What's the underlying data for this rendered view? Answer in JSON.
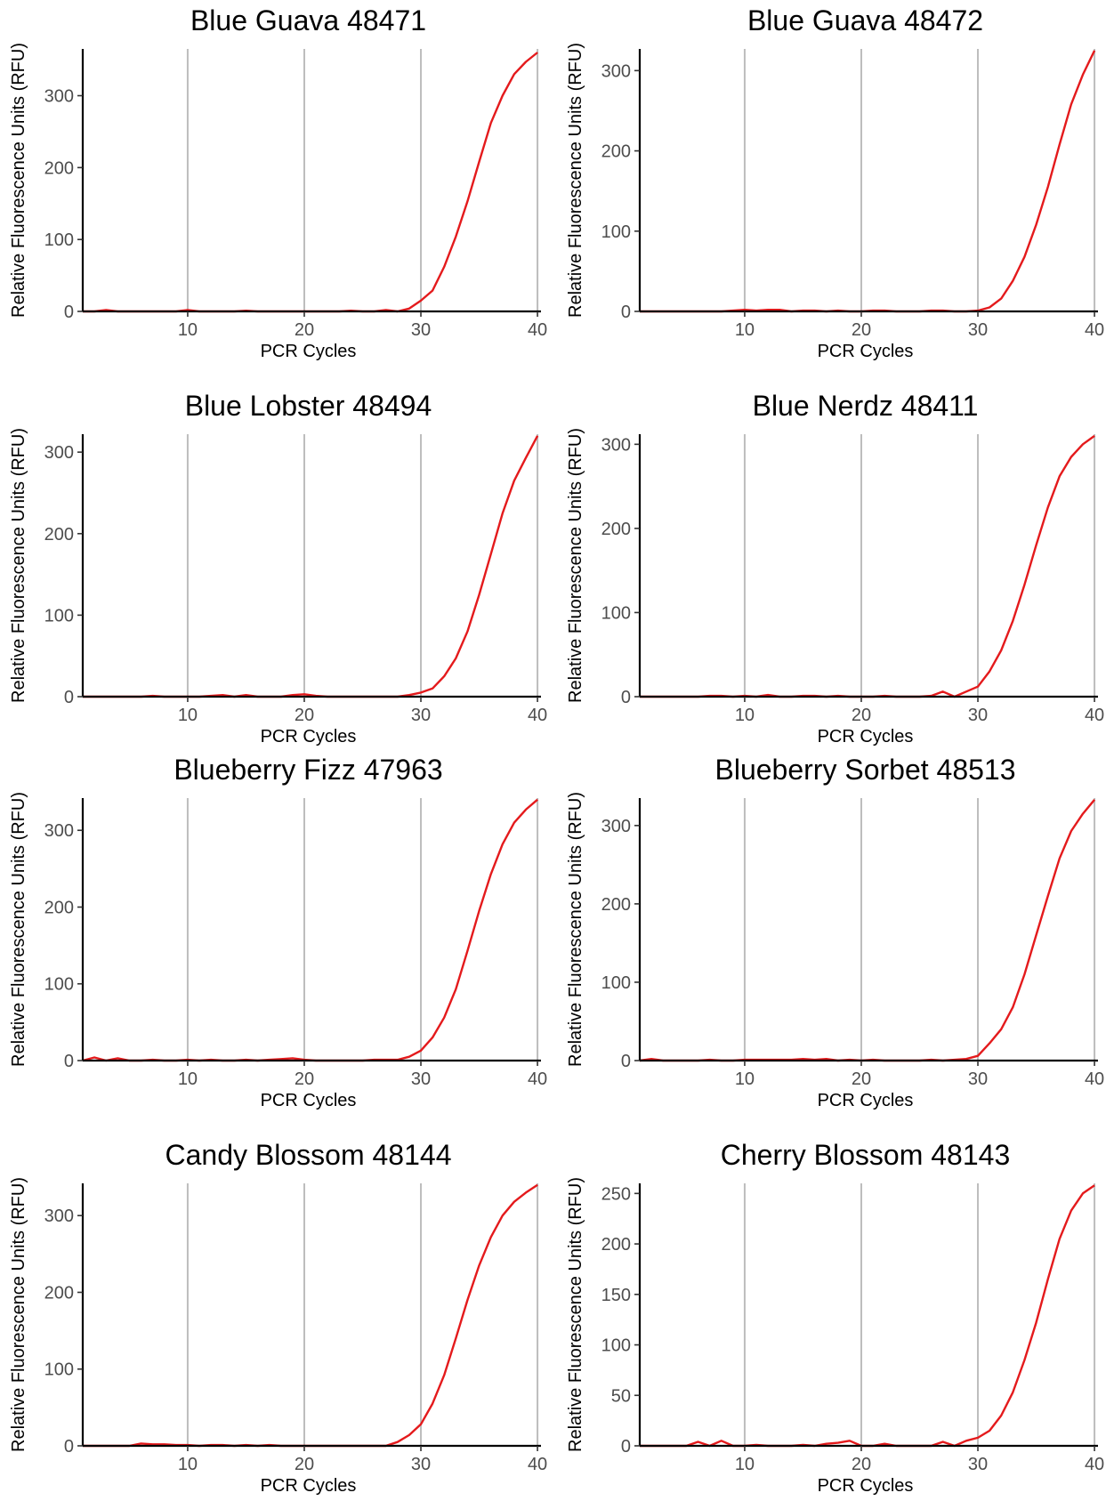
{
  "colors": {
    "series": "#e41a1c",
    "grid": "#bdbdbd",
    "axis": "#000000",
    "tick_text": "#4d4d4d"
  },
  "chart_data": [
    {
      "type": "line",
      "title": "Blue Guava 48471",
      "xlabel": "PCR Cycles",
      "ylabel": "Relative Fluorescence Units (RFU)",
      "xlim": [
        1,
        40.3
      ],
      "ylim": [
        0,
        365
      ],
      "xticks": [
        10,
        20,
        30,
        40
      ],
      "yticks": [
        0,
        100,
        200,
        300
      ],
      "grid": "vertical major",
      "x": [
        1,
        2,
        3,
        4,
        5,
        6,
        7,
        8,
        9,
        10,
        11,
        12,
        13,
        14,
        15,
        16,
        17,
        18,
        19,
        20,
        21,
        22,
        23,
        24,
        25,
        26,
        27,
        28,
        29,
        30,
        31,
        32,
        33,
        34,
        35,
        36,
        37,
        38,
        39,
        40
      ],
      "y": [
        0,
        0,
        2,
        0,
        0,
        0,
        0,
        0,
        0,
        2,
        0,
        0,
        0,
        0,
        1,
        0,
        0,
        0,
        0,
        0,
        0,
        0,
        0,
        1,
        0,
        0,
        2,
        0,
        4,
        15,
        29,
        62,
        104,
        153,
        208,
        262,
        300,
        330,
        347,
        360
      ]
    },
    {
      "type": "line",
      "title": "Blue Guava 48472",
      "xlabel": "PCR Cycles",
      "ylabel": "Relative Fluorescence Units (RFU)",
      "xlim": [
        1,
        40.3
      ],
      "ylim": [
        0,
        327
      ],
      "xticks": [
        10,
        20,
        30,
        40
      ],
      "yticks": [
        0,
        100,
        200,
        300
      ],
      "grid": "vertical major",
      "x": [
        1,
        2,
        3,
        4,
        5,
        6,
        7,
        8,
        9,
        10,
        11,
        12,
        13,
        14,
        15,
        16,
        17,
        18,
        19,
        20,
        21,
        22,
        23,
        24,
        25,
        26,
        27,
        28,
        29,
        30,
        31,
        32,
        33,
        34,
        35,
        36,
        37,
        38,
        39,
        40
      ],
      "y": [
        0,
        0,
        0,
        0,
        0,
        0,
        0,
        0,
        1,
        2,
        1,
        2,
        2,
        0,
        1,
        1,
        0,
        1,
        0,
        0,
        1,
        1,
        0,
        0,
        0,
        1,
        1,
        0,
        0,
        1,
        5,
        16,
        38,
        68,
        108,
        155,
        208,
        258,
        295,
        325
      ]
    },
    {
      "type": "line",
      "title": "Blue Lobster 48494",
      "xlabel": "PCR Cycles",
      "ylabel": "Relative Fluorescence Units (RFU)",
      "xlim": [
        1,
        40.3
      ],
      "ylim": [
        0,
        322
      ],
      "xticks": [
        10,
        20,
        30,
        40
      ],
      "yticks": [
        0,
        100,
        200,
        300
      ],
      "grid": "vertical major",
      "x": [
        1,
        2,
        3,
        4,
        5,
        6,
        7,
        8,
        9,
        10,
        11,
        12,
        13,
        14,
        15,
        16,
        17,
        18,
        19,
        20,
        21,
        22,
        23,
        24,
        25,
        26,
        27,
        28,
        29,
        30,
        31,
        32,
        33,
        34,
        35,
        36,
        37,
        38,
        39,
        40
      ],
      "y": [
        0,
        0,
        0,
        0,
        0,
        0,
        1,
        0,
        0,
        0,
        0,
        1,
        2,
        0,
        2,
        0,
        0,
        0,
        2,
        3,
        1,
        0,
        0,
        0,
        0,
        0,
        0,
        0,
        2,
        5,
        10,
        25,
        47,
        80,
        125,
        175,
        225,
        265,
        293,
        320
      ]
    },
    {
      "type": "line",
      "title": "Blue Nerdz 48411",
      "xlabel": "PCR Cycles",
      "ylabel": "Relative Fluorescence Units (RFU)",
      "xlim": [
        1,
        40.3
      ],
      "ylim": [
        0,
        312
      ],
      "xticks": [
        10,
        20,
        30,
        40
      ],
      "yticks": [
        0,
        100,
        200,
        300
      ],
      "grid": "vertical major",
      "x": [
        1,
        2,
        3,
        4,
        5,
        6,
        7,
        8,
        9,
        10,
        11,
        12,
        13,
        14,
        15,
        16,
        17,
        18,
        19,
        20,
        21,
        22,
        23,
        24,
        25,
        26,
        27,
        28,
        29,
        30,
        31,
        32,
        33,
        34,
        35,
        36,
        37,
        38,
        39,
        40
      ],
      "y": [
        0,
        0,
        0,
        0,
        0,
        0,
        1,
        1,
        0,
        1,
        0,
        2,
        0,
        0,
        1,
        1,
        0,
        1,
        0,
        0,
        0,
        1,
        0,
        0,
        0,
        1,
        6,
        0,
        6,
        12,
        30,
        55,
        90,
        133,
        180,
        225,
        262,
        285,
        300,
        310
      ]
    },
    {
      "type": "line",
      "title": "Blueberry Fizz 47963",
      "xlabel": "PCR Cycles",
      "ylabel": "Relative Fluorescence Units (RFU)",
      "xlim": [
        1,
        40.3
      ],
      "ylim": [
        0,
        342
      ],
      "xticks": [
        10,
        20,
        30,
        40
      ],
      "yticks": [
        0,
        100,
        200,
        300
      ],
      "grid": "vertical major",
      "x": [
        1,
        2,
        3,
        4,
        5,
        6,
        7,
        8,
        9,
        10,
        11,
        12,
        13,
        14,
        15,
        16,
        17,
        18,
        19,
        20,
        21,
        22,
        23,
        24,
        25,
        26,
        27,
        28,
        29,
        30,
        31,
        32,
        33,
        34,
        35,
        36,
        37,
        38,
        39,
        40
      ],
      "y": [
        0,
        4,
        0,
        3,
        0,
        0,
        1,
        0,
        0,
        1,
        0,
        1,
        0,
        0,
        1,
        0,
        1,
        2,
        3,
        1,
        0,
        0,
        0,
        0,
        0,
        1,
        1,
        1,
        5,
        13,
        30,
        56,
        93,
        143,
        195,
        243,
        282,
        310,
        327,
        340
      ]
    },
    {
      "type": "line",
      "title": "Blueberry Sorbet 48513",
      "xlabel": "PCR Cycles",
      "ylabel": "Relative Fluorescence Units (RFU)",
      "xlim": [
        1,
        40.3
      ],
      "ylim": [
        0,
        335
      ],
      "xticks": [
        10,
        20,
        30,
        40
      ],
      "yticks": [
        0,
        100,
        200,
        300
      ],
      "grid": "vertical major",
      "x": [
        1,
        2,
        3,
        4,
        5,
        6,
        7,
        8,
        9,
        10,
        11,
        12,
        13,
        14,
        15,
        16,
        17,
        18,
        19,
        20,
        21,
        22,
        23,
        24,
        25,
        26,
        27,
        28,
        29,
        30,
        31,
        32,
        33,
        34,
        35,
        36,
        37,
        38,
        39,
        40
      ],
      "y": [
        0,
        2,
        0,
        0,
        0,
        0,
        1,
        0,
        0,
        1,
        1,
        1,
        1,
        1,
        2,
        1,
        2,
        0,
        1,
        0,
        1,
        0,
        0,
        0,
        0,
        1,
        0,
        1,
        2,
        6,
        22,
        40,
        68,
        110,
        160,
        210,
        258,
        293,
        315,
        333
      ]
    },
    {
      "type": "line",
      "title": "Candy Blossom 48144",
      "xlabel": "PCR Cycles",
      "ylabel": "Relative Fluorescence Units (RFU)",
      "xlim": [
        1,
        40.3
      ],
      "ylim": [
        0,
        342
      ],
      "xticks": [
        10,
        20,
        30,
        40
      ],
      "yticks": [
        0,
        100,
        200,
        300
      ],
      "grid": "vertical major",
      "x": [
        1,
        2,
        3,
        4,
        5,
        6,
        7,
        8,
        9,
        10,
        11,
        12,
        13,
        14,
        15,
        16,
        17,
        18,
        19,
        20,
        21,
        22,
        23,
        24,
        25,
        26,
        27,
        28,
        29,
        30,
        31,
        32,
        33,
        34,
        35,
        36,
        37,
        38,
        39,
        40
      ],
      "y": [
        0,
        0,
        0,
        0,
        0,
        3,
        2,
        2,
        1,
        1,
        0,
        1,
        1,
        0,
        1,
        0,
        1,
        0,
        0,
        0,
        0,
        0,
        0,
        0,
        0,
        0,
        0,
        5,
        14,
        28,
        55,
        92,
        140,
        190,
        235,
        272,
        300,
        318,
        330,
        340
      ]
    },
    {
      "type": "line",
      "title": "Cherry Blossom 48143",
      "xlabel": "PCR Cycles",
      "ylabel": "Relative Fluorescence Units (RFU)",
      "xlim": [
        1,
        40.3
      ],
      "ylim": [
        0,
        260
      ],
      "xticks": [
        10,
        20,
        30,
        40
      ],
      "yticks": [
        0,
        50,
        100,
        150,
        200,
        250
      ],
      "grid": "vertical major",
      "x": [
        1,
        2,
        3,
        4,
        5,
        6,
        7,
        8,
        9,
        10,
        11,
        12,
        13,
        14,
        15,
        16,
        17,
        18,
        19,
        20,
        21,
        22,
        23,
        24,
        25,
        26,
        27,
        28,
        29,
        30,
        31,
        32,
        33,
        34,
        35,
        36,
        37,
        38,
        39,
        40
      ],
      "y": [
        0,
        0,
        0,
        0,
        0,
        4,
        0,
        5,
        0,
        0,
        1,
        0,
        0,
        0,
        1,
        0,
        2,
        3,
        5,
        0,
        0,
        2,
        0,
        0,
        0,
        0,
        4,
        0,
        5,
        8,
        15,
        30,
        53,
        85,
        122,
        165,
        205,
        233,
        250,
        258
      ]
    }
  ]
}
